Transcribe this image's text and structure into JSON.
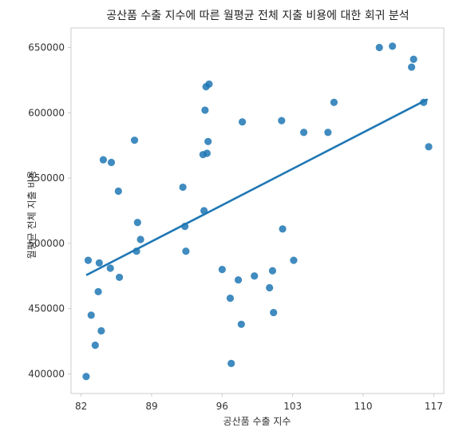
{
  "chart_data": {
    "type": "scatter",
    "title": "공산품 수출 지수에 따른 월평균 전체 지출 비용에 대한 회귀 분석",
    "xlabel": "공산품 수출 지수",
    "ylabel": "월평균 전체 지출 비용",
    "xlim": [
      81.0,
      118.0
    ],
    "ylim": [
      385000,
      665000
    ],
    "xticks": [
      82,
      89,
      96,
      103,
      110,
      117
    ],
    "yticks": [
      400000,
      450000,
      500000,
      550000,
      600000,
      650000
    ],
    "x_tick_labels": [
      "82",
      "89",
      "96",
      "103",
      "110",
      "117"
    ],
    "y_tick_labels": [
      "400000",
      "450000",
      "500000",
      "550000",
      "600000",
      "650000"
    ],
    "grid": false,
    "legend": "none",
    "colors": {
      "points": "#1f77b4",
      "line": "#1f77b4",
      "frame": "#cccccc"
    },
    "regression_line": {
      "x": [
        82.6,
        116.3
      ],
      "y": [
        476000,
        610000
      ]
    },
    "series": [
      {
        "x": [
          82.5,
          82.7,
          83.0,
          83.4,
          83.7,
          83.8,
          84.0,
          84.2,
          85.0,
          84.9,
          85.7,
          85.8,
          87.3,
          87.5,
          87.6,
          87.9,
          92.1,
          92.3,
          92.4,
          94.1,
          94.2,
          94.3,
          94.4,
          94.5,
          94.6,
          94.7,
          96.0,
          96.8,
          96.9,
          97.6,
          97.9,
          98.0,
          99.2,
          100.7,
          101.0,
          101.1,
          101.9,
          102.0,
          103.1,
          104.1,
          106.5,
          107.1,
          111.6,
          112.9,
          114.8,
          115.0,
          116.0,
          116.5
        ],
        "y": [
          398000,
          487000,
          445000,
          422000,
          463000,
          485000,
          433000,
          564000,
          562000,
          481000,
          540000,
          474000,
          579000,
          494000,
          516000,
          503000,
          543000,
          513000,
          494000,
          568000,
          525000,
          602000,
          620000,
          569000,
          578000,
          622000,
          480000,
          458000,
          408000,
          472000,
          438000,
          593000,
          475000,
          466000,
          479000,
          447000,
          594000,
          511000,
          487000,
          585000,
          585000,
          608000,
          650000,
          651000,
          635000,
          641000,
          608000,
          574000
        ]
      }
    ]
  }
}
